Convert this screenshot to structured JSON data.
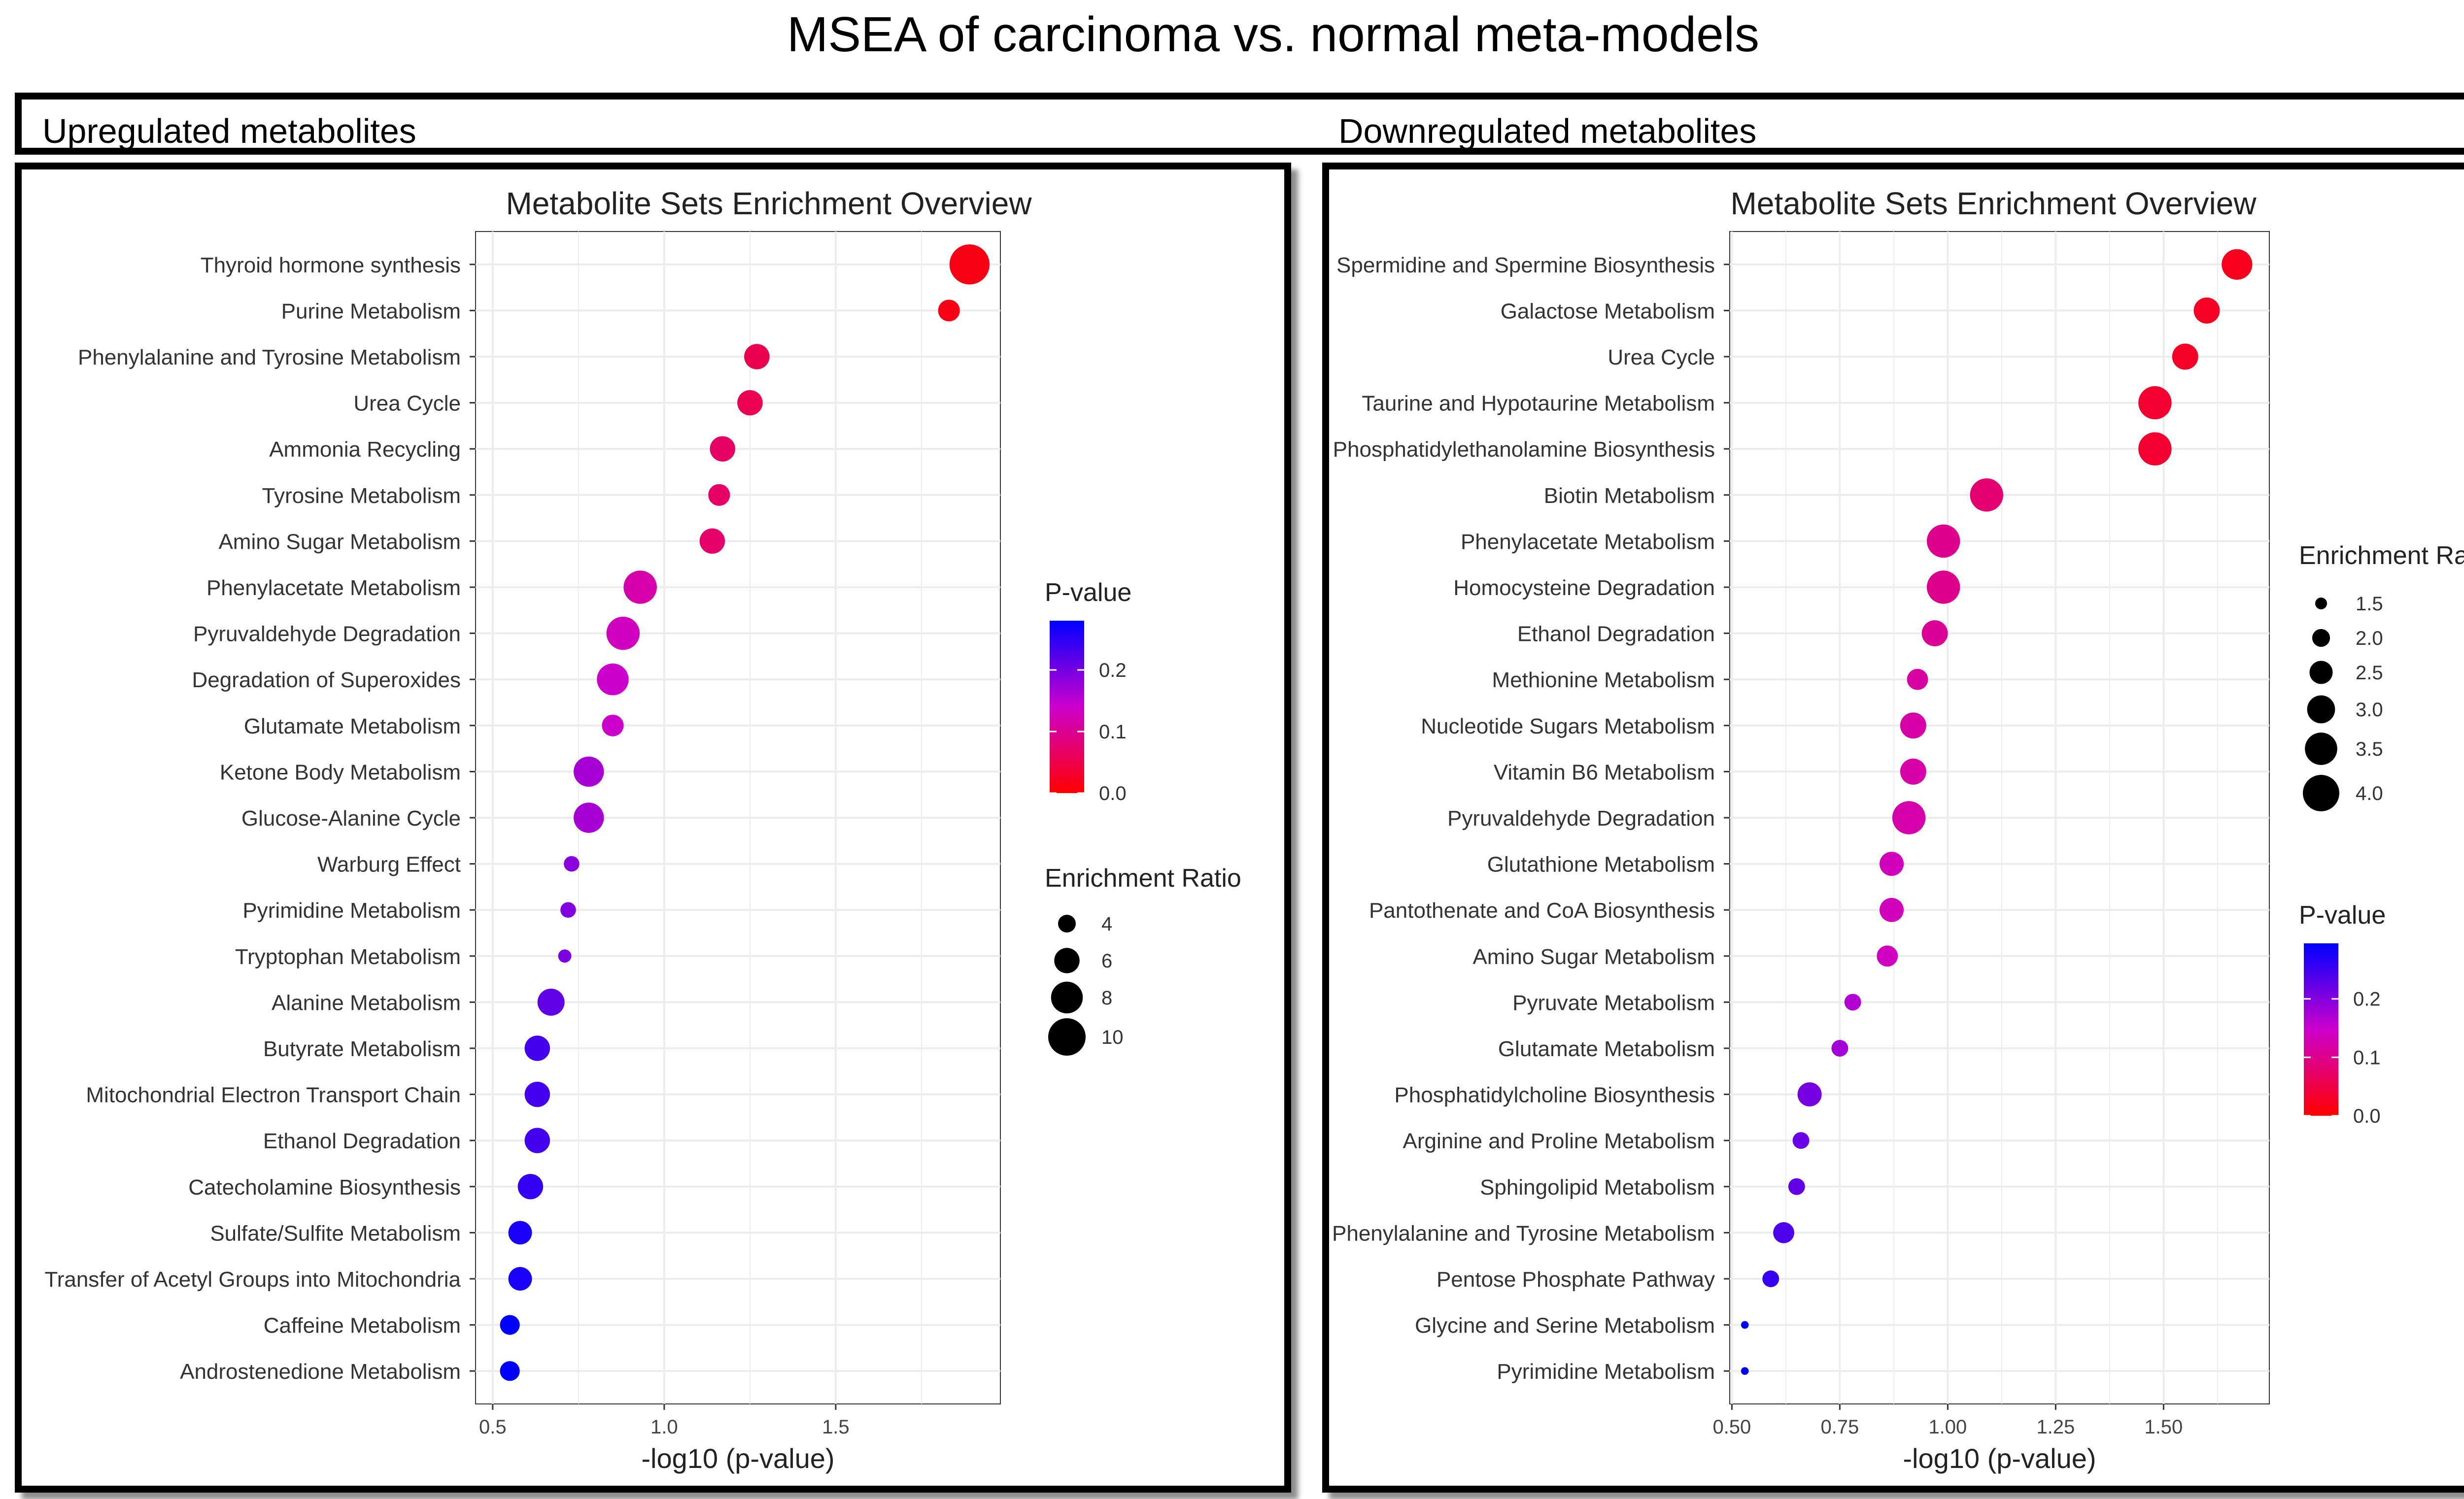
{
  "figure": {
    "title": "MSEA of carcinoma vs. normal meta-models",
    "left_header": "Upregulated metabolites",
    "right_header": "Downregulated metabolites"
  },
  "colors": {
    "low_p": "#ff0000",
    "mid_p": "#cc00cc",
    "high_p": "#0000ff",
    "grid": "#ececec"
  },
  "chart_data": [
    {
      "type": "scatter",
      "title": "Metabolite Sets Enrichment Overview",
      "xlabel": "-log10 (p-value)",
      "xlim": [
        0.45,
        1.98
      ],
      "xticks": [
        0.5,
        1.0,
        1.5
      ],
      "xtick_labels": [
        "0.5",
        "1.0",
        "1.5"
      ],
      "grid": true,
      "legend_position": "right",
      "pvalue_legend": {
        "title": "P-value",
        "range": [
          0,
          0.28
        ],
        "ticks": [
          "0.0",
          "0.1",
          "0.2"
        ],
        "tick_values": [
          0,
          0.1,
          0.2
        ]
      },
      "size_legend": {
        "title": "Enrichment Ratio",
        "values": [
          4,
          6,
          8,
          10
        ],
        "labels": [
          "4",
          "6",
          "8",
          "10"
        ]
      },
      "categories": [
        "Thyroid hormone synthesis",
        "Purine Metabolism",
        "Phenylalanine and Tyrosine Metabolism",
        "Urea Cycle",
        "Ammonia Recycling",
        "Tyrosine Metabolism",
        "Amino Sugar Metabolism",
        "Phenylacetate Metabolism",
        "Pyruvaldehyde Degradation",
        "Degradation of Superoxides",
        "Glutamate Metabolism",
        "Ketone Body Metabolism",
        "Glucose-Alanine Cycle",
        "Warburg Effect",
        "Pyrimidine Metabolism",
        "Tryptophan Metabolism",
        "Alanine Metabolism",
        "Butyrate Metabolism",
        "Mitochondrial Electron Transport Chain",
        "Ethanol Degradation",
        "Catecholamine Biosynthesis",
        "Sulfate/Sulfite Metabolism",
        "Transfer of Acetyl Groups into Mitochondria",
        "Caffeine Metabolism",
        "Androstenedione Metabolism"
      ],
      "x": [
        1.89,
        1.83,
        1.27,
        1.25,
        1.17,
        1.16,
        1.14,
        0.93,
        0.88,
        0.85,
        0.85,
        0.78,
        0.78,
        0.73,
        0.72,
        0.71,
        0.67,
        0.63,
        0.63,
        0.63,
        0.61,
        0.58,
        0.58,
        0.55,
        0.55
      ],
      "enrichment_ratio": [
        11,
        5,
        6,
        6,
        6,
        5,
        6,
        8.5,
        8.5,
        8,
        5,
        7.5,
        7.5,
        3.5,
        3.5,
        3,
        6.5,
        6,
        6,
        6,
        6,
        5.5,
        5.5,
        4.5,
        4.5
      ],
      "p_value": [
        0.013,
        0.015,
        0.054,
        0.056,
        0.068,
        0.069,
        0.072,
        0.117,
        0.132,
        0.141,
        0.141,
        0.166,
        0.166,
        0.186,
        0.191,
        0.195,
        0.214,
        0.234,
        0.234,
        0.234,
        0.245,
        0.263,
        0.263,
        0.282,
        0.282
      ]
    },
    {
      "type": "scatter",
      "title": "Metabolite Sets Enrichment Overview",
      "xlabel": "-log10 (p-value)",
      "xlim": [
        0.495,
        1.745
      ],
      "xticks": [
        0.5,
        0.75,
        1.0,
        1.25,
        1.5
      ],
      "xtick_labels": [
        "0.50",
        "0.75",
        "1.00",
        "1.25",
        "1.50"
      ],
      "grid": true,
      "legend_position": "right",
      "pvalue_legend": {
        "title": "P-value",
        "range": [
          0,
          0.295
        ],
        "ticks": [
          "0.0",
          "0.1",
          "0.2"
        ],
        "tick_values": [
          0,
          0.1,
          0.2
        ]
      },
      "size_legend": {
        "title": "Enrichment Ratio",
        "values": [
          1.5,
          2.0,
          2.5,
          3.0,
          3.5,
          4.0
        ],
        "labels": [
          "1.5",
          "2.0",
          "2.5",
          "3.0",
          "3.5",
          "4.0"
        ]
      },
      "categories": [
        "Spermidine and Spermine Biosynthesis",
        "Galactose Metabolism",
        "Urea Cycle",
        "Taurine and Hypotaurine Metabolism",
        "Phosphatidylethanolamine Biosynthesis",
        "Biotin Metabolism",
        "Phenylacetate Metabolism",
        "Homocysteine Degradation",
        "Ethanol Degradation",
        "Methionine Metabolism",
        "Nucleotide Sugars Metabolism",
        "Vitamin B6 Metabolism",
        "Pyruvaldehyde Degradation",
        "Glutathione Metabolism",
        "Pantothenate and CoA Biosynthesis",
        "Amino Sugar Metabolism",
        "Pyruvate Metabolism",
        "Glutamate Metabolism",
        "Phosphatidylcholine Biosynthesis",
        "Arginine and Proline Metabolism",
        "Sphingolipid Metabolism",
        "Phenylalanine and Tyrosine Metabolism",
        "Pentose Phosphate Pathway",
        "Glycine and Serine Metabolism",
        "Pyrimidine Metabolism"
      ],
      "x": [
        1.67,
        1.6,
        1.55,
        1.48,
        1.48,
        1.09,
        0.99,
        0.99,
        0.97,
        0.93,
        0.92,
        0.92,
        0.91,
        0.87,
        0.87,
        0.86,
        0.78,
        0.75,
        0.68,
        0.66,
        0.65,
        0.62,
        0.59,
        0.53,
        0.53
      ],
      "enrichment_ratio": [
        3.3,
        2.8,
        2.8,
        3.6,
        3.6,
        3.6,
        3.6,
        3.6,
        2.8,
        2.3,
        2.8,
        2.8,
        3.6,
        2.6,
        2.6,
        2.3,
        1.9,
        1.9,
        2.6,
        1.9,
        1.9,
        2.3,
        1.9,
        1.2,
        1.2
      ],
      "p_value": [
        0.021,
        0.025,
        0.028,
        0.033,
        0.033,
        0.081,
        0.102,
        0.102,
        0.107,
        0.117,
        0.12,
        0.12,
        0.123,
        0.135,
        0.135,
        0.138,
        0.166,
        0.178,
        0.209,
        0.219,
        0.224,
        0.24,
        0.257,
        0.295,
        0.295
      ]
    }
  ]
}
